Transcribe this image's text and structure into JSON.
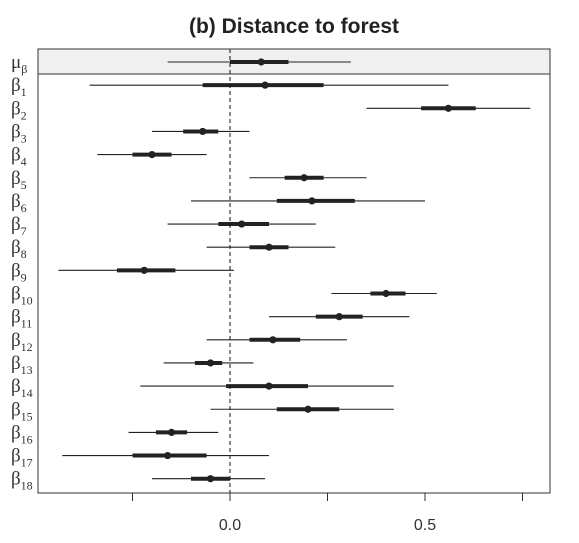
{
  "chart_data": {
    "type": "forest",
    "title": "(b) Distance to forest",
    "xlabel": "",
    "ylabel": "",
    "xlim": [
      -0.5,
      0.82
    ],
    "xticks": [
      {
        "value": 0.0,
        "label": "0.0"
      },
      {
        "value": 0.5,
        "label": "0.5"
      }
    ],
    "minor_xticks": [
      -0.25,
      0.25,
      0.75
    ],
    "reference_line": {
      "x": 0.0,
      "style": "dashed"
    },
    "highlighted_row": "μβ",
    "rows": [
      {
        "label": "μ",
        "sub": "β",
        "median": 0.08,
        "inner": [
          0.0,
          0.15
        ],
        "outer": [
          -0.16,
          0.31
        ]
      },
      {
        "label": "β",
        "sub": "1",
        "median": 0.09,
        "inner": [
          -0.07,
          0.24
        ],
        "outer": [
          -0.36,
          0.56
        ]
      },
      {
        "label": "β",
        "sub": "2",
        "median": 0.56,
        "inner": [
          0.49,
          0.63
        ],
        "outer": [
          0.35,
          0.77
        ]
      },
      {
        "label": "β",
        "sub": "3",
        "median": -0.07,
        "inner": [
          -0.12,
          -0.03
        ],
        "outer": [
          -0.2,
          0.05
        ]
      },
      {
        "label": "β",
        "sub": "4",
        "median": -0.2,
        "inner": [
          -0.25,
          -0.15
        ],
        "outer": [
          -0.34,
          -0.06
        ]
      },
      {
        "label": "β",
        "sub": "5",
        "median": 0.19,
        "inner": [
          0.14,
          0.24
        ],
        "outer": [
          0.05,
          0.35
        ]
      },
      {
        "label": "β",
        "sub": "6",
        "median": 0.21,
        "inner": [
          0.12,
          0.32
        ],
        "outer": [
          -0.1,
          0.5
        ]
      },
      {
        "label": "β",
        "sub": "7",
        "median": 0.03,
        "inner": [
          -0.03,
          0.1
        ],
        "outer": [
          -0.16,
          0.22
        ]
      },
      {
        "label": "β",
        "sub": "8",
        "median": 0.1,
        "inner": [
          0.05,
          0.15
        ],
        "outer": [
          -0.06,
          0.27
        ]
      },
      {
        "label": "β",
        "sub": "9",
        "median": -0.22,
        "inner": [
          -0.29,
          -0.14
        ],
        "outer": [
          -0.44,
          0.01
        ]
      },
      {
        "label": "β",
        "sub": "10",
        "median": 0.4,
        "inner": [
          0.36,
          0.45
        ],
        "outer": [
          0.26,
          0.53
        ]
      },
      {
        "label": "β",
        "sub": "11",
        "median": 0.28,
        "inner": [
          0.22,
          0.34
        ],
        "outer": [
          0.1,
          0.46
        ]
      },
      {
        "label": "β",
        "sub": "12",
        "median": 0.11,
        "inner": [
          0.05,
          0.18
        ],
        "outer": [
          -0.06,
          0.3
        ]
      },
      {
        "label": "β",
        "sub": "13",
        "median": -0.05,
        "inner": [
          -0.09,
          -0.02
        ],
        "outer": [
          -0.17,
          0.06
        ]
      },
      {
        "label": "β",
        "sub": "14",
        "median": 0.1,
        "inner": [
          -0.01,
          0.2
        ],
        "outer": [
          -0.23,
          0.42
        ]
      },
      {
        "label": "β",
        "sub": "15",
        "median": 0.2,
        "inner": [
          0.12,
          0.28
        ],
        "outer": [
          -0.05,
          0.42
        ]
      },
      {
        "label": "β",
        "sub": "16",
        "median": -0.15,
        "inner": [
          -0.19,
          -0.11
        ],
        "outer": [
          -0.26,
          -0.03
        ]
      },
      {
        "label": "β",
        "sub": "17",
        "median": -0.16,
        "inner": [
          -0.25,
          -0.06
        ],
        "outer": [
          -0.43,
          0.1
        ]
      },
      {
        "label": "β",
        "sub": "18",
        "median": -0.05,
        "inner": [
          -0.1,
          0.0
        ],
        "outer": [
          -0.2,
          0.09
        ]
      }
    ]
  },
  "colors": {
    "axis": "#333333",
    "line": "#222222",
    "highlight_band": "#f0f0f0",
    "reference_line": "#111111"
  }
}
